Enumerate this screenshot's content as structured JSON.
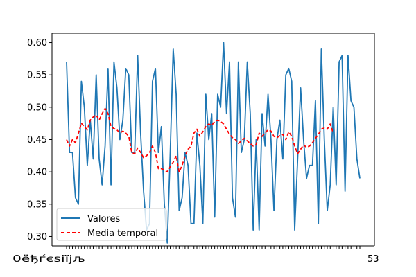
{
  "chart_data": {
    "type": "line",
    "title": "",
    "xlabel": "",
    "ylabel": "",
    "ylim": [
      0.2855,
      0.6145
    ],
    "yticks": [
      0.3,
      0.35,
      0.4,
      0.45,
      0.5,
      0.55,
      0.6
    ],
    "ytick_labels": [
      "0.30",
      "0.35",
      "0.40",
      "0.45",
      "0.50",
      "0.55",
      "0.60"
    ],
    "x_tick_labels_overlapping": "0ёђѓєѕіїјљ",
    "x_tick_labels_right": "53",
    "grid": false,
    "legend_position": "lower left",
    "series": [
      {
        "name": "Valores",
        "color": "#1f77b4",
        "style": "solid",
        "values": [
          0.57,
          0.43,
          0.43,
          0.36,
          0.35,
          0.54,
          0.5,
          0.41,
          0.48,
          0.42,
          0.55,
          0.42,
          0.38,
          0.44,
          0.56,
          0.38,
          0.57,
          0.53,
          0.45,
          0.48,
          0.56,
          0.55,
          0.43,
          0.43,
          0.58,
          0.46,
          0.37,
          0.31,
          0.32,
          0.54,
          0.56,
          0.43,
          0.47,
          0.35,
          0.29,
          0.43,
          0.59,
          0.52,
          0.34,
          0.36,
          0.43,
          0.41,
          0.32,
          0.32,
          0.46,
          0.41,
          0.32,
          0.52,
          0.45,
          0.49,
          0.33,
          0.52,
          0.5,
          0.6,
          0.49,
          0.57,
          0.36,
          0.33,
          0.57,
          0.43,
          0.45,
          0.57,
          0.49,
          0.31,
          0.45,
          0.31,
          0.49,
          0.44,
          0.52,
          0.45,
          0.34,
          0.45,
          0.48,
          0.42,
          0.55,
          0.56,
          0.54,
          0.31,
          0.42,
          0.53,
          0.45,
          0.39,
          0.41,
          0.41,
          0.51,
          0.32,
          0.59,
          0.45,
          0.34,
          0.38,
          0.5,
          0.38,
          0.57,
          0.58,
          0.37,
          0.58,
          0.51,
          0.5,
          0.42,
          0.39
        ]
      },
      {
        "name": "Media temporal",
        "color": "#ff0000",
        "style": "dashed",
        "start_index": 0,
        "values": [
          0.45,
          0.44,
          0.45,
          0.445,
          0.46,
          0.475,
          0.47,
          0.465,
          0.48,
          0.485,
          0.488,
          0.48,
          0.49,
          0.498,
          0.49,
          0.47,
          0.467,
          0.465,
          0.46,
          0.463,
          0.46,
          0.455,
          0.43,
          0.428,
          0.437,
          0.43,
          0.422,
          0.425,
          0.43,
          0.44,
          0.43,
          0.405,
          0.405,
          0.403,
          0.4,
          0.408,
          0.415,
          0.425,
          0.4,
          0.41,
          0.425,
          0.435,
          0.44,
          0.46,
          0.466,
          0.455,
          0.462,
          0.47,
          0.474,
          0.472,
          0.478,
          0.48,
          0.478,
          0.474,
          0.466,
          0.458,
          0.453,
          0.45,
          0.444,
          0.448,
          0.452,
          0.448,
          0.444,
          0.44,
          0.442,
          0.46,
          0.455,
          0.46,
          0.465,
          0.463,
          0.455,
          0.453,
          0.456,
          0.458,
          0.45,
          0.462,
          0.455,
          0.44,
          0.428,
          0.435,
          0.442,
          0.438,
          0.44,
          0.445,
          0.452,
          0.458,
          0.466,
          0.468,
          0.466,
          0.474,
          0.46
        ]
      }
    ]
  }
}
